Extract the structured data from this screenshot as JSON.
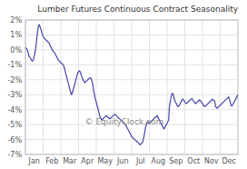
{
  "chart_data": {
    "type": "line",
    "title": "Lumber Futures Continuous Contract Seasonality",
    "annotations": [
      "© EquityClock.com"
    ],
    "color": "#4444aa",
    "grid": true,
    "xlim": [
      0,
      12
    ],
    "xticks": [
      {
        "value": 0,
        "label": "Jan"
      },
      {
        "value": 1,
        "label": "Feb"
      },
      {
        "value": 2,
        "label": "Mar"
      },
      {
        "value": 3,
        "label": "Apr"
      },
      {
        "value": 4,
        "label": "May"
      },
      {
        "value": 5,
        "label": "Jun"
      },
      {
        "value": 6,
        "label": "Jul"
      },
      {
        "value": 7,
        "label": "Aug"
      },
      {
        "value": 8,
        "label": "Sep"
      },
      {
        "value": 9,
        "label": "Oct"
      },
      {
        "value": 10,
        "label": "Nov"
      },
      {
        "value": 11,
        "label": "Dec"
      }
    ],
    "ylim": [
      -7,
      2
    ],
    "yticks": [
      {
        "value": 2,
        "label": "2%"
      },
      {
        "value": 1,
        "label": "1%"
      },
      {
        "value": 0,
        "label": "0%"
      },
      {
        "value": -1,
        "label": "-1%"
      },
      {
        "value": -2,
        "label": "-2%"
      },
      {
        "value": -3,
        "label": "-3%"
      },
      {
        "value": -4,
        "label": "-4%"
      },
      {
        "value": -5,
        "label": "-5%"
      },
      {
        "value": -6,
        "label": "-6%"
      },
      {
        "value": -7,
        "label": "-7%"
      }
    ],
    "values": [
      0.15,
      0.1,
      0.05,
      -0.1,
      -0.3,
      -0.45,
      -0.5,
      -0.6,
      -0.7,
      -0.75,
      -0.7,
      -0.5,
      -0.3,
      0.0,
      0.4,
      0.9,
      1.3,
      1.6,
      1.7,
      1.55,
      1.4,
      1.2,
      1.05,
      0.9,
      0.8,
      0.75,
      0.7,
      0.65,
      0.6,
      0.55,
      0.5,
      0.45,
      0.3,
      0.2,
      0.1,
      0.0,
      -0.1,
      -0.15,
      -0.2,
      -0.3,
      -0.4,
      -0.5,
      -0.6,
      -0.7,
      -0.75,
      -0.8,
      -0.85,
      -0.9,
      -0.95,
      -1.0,
      -1.1,
      -1.3,
      -1.5,
      -1.7,
      -1.9,
      -2.1,
      -2.3,
      -2.5,
      -2.7,
      -2.9,
      -3.0,
      -2.85,
      -2.7,
      -2.5,
      -2.3,
      -2.1,
      -1.9,
      -1.7,
      -1.55,
      -1.45,
      -1.4,
      -1.45,
      -1.6,
      -1.75,
      -1.9,
      -2.0,
      -2.1,
      -2.2,
      -2.15,
      -2.1,
      -2.05,
      -2.0,
      -1.95,
      -1.9,
      -1.85,
      -1.9,
      -2.0,
      -2.2,
      -2.5,
      -2.8,
      -3.1,
      -3.3,
      -3.5,
      -3.7,
      -3.9,
      -4.1,
      -4.3,
      -4.5,
      -4.6,
      -4.7,
      -4.65,
      -4.6,
      -4.55,
      -4.5,
      -4.45,
      -4.4,
      -4.45,
      -4.5,
      -4.55,
      -4.6,
      -4.6,
      -4.55,
      -4.5,
      -4.45,
      -4.4,
      -4.35,
      -4.3,
      -4.35,
      -4.4,
      -4.45,
      -4.5,
      -4.55,
      -4.6,
      -4.65,
      -4.7,
      -4.75,
      -4.8,
      -4.85,
      -4.9,
      -4.95,
      -5.0,
      -5.1,
      -5.2,
      -5.3,
      -5.4,
      -5.5,
      -5.6,
      -5.7,
      -5.8,
      -5.85,
      -5.9,
      -5.95,
      -6.0,
      -6.05,
      -6.1,
      -6.15,
      -6.2,
      -6.25,
      -6.3,
      -6.35,
      -6.3,
      -6.25,
      -6.2,
      -6.0,
      -5.8,
      -5.5,
      -5.2,
      -5.0,
      -4.85,
      -4.8,
      -4.85,
      -4.9,
      -4.85,
      -4.8,
      -4.75,
      -4.7,
      -4.65,
      -4.6,
      -4.55,
      -4.5,
      -4.45,
      -4.4,
      -4.5,
      -4.6,
      -4.7,
      -4.8,
      -4.9,
      -5.0,
      -5.1,
      -5.2,
      -5.3,
      -5.2,
      -5.1,
      -5.0,
      -4.9,
      -4.8,
      -4.7,
      -3.8,
      -3.5,
      -3.2,
      -3.0,
      -2.9,
      -3.0,
      -3.2,
      -3.4,
      -3.5,
      -3.6,
      -3.7,
      -3.8,
      -3.75,
      -3.7,
      -3.6,
      -3.5,
      -3.4,
      -3.3,
      -3.3,
      -3.4,
      -3.5,
      -3.55,
      -3.6,
      -3.55,
      -3.5,
      -3.45,
      -3.4,
      -3.35,
      -3.3,
      -3.25,
      -3.3,
      -3.4,
      -3.5,
      -3.55,
      -3.6,
      -3.55,
      -3.5,
      -3.45,
      -3.4,
      -3.35,
      -3.4,
      -3.45,
      -3.5,
      -3.6,
      -3.7,
      -3.75,
      -3.8,
      -3.75,
      -3.7,
      -3.65,
      -3.6,
      -3.55,
      -3.5,
      -3.45,
      -3.4,
      -3.35,
      -3.3,
      -3.35,
      -3.4,
      -3.45,
      -3.8,
      -3.85,
      -3.9,
      -3.85,
      -3.8,
      -3.75,
      -3.7,
      -3.65,
      -3.6,
      -3.55,
      -3.5,
      -3.45,
      -3.4,
      -3.35,
      -3.3,
      -3.25,
      -3.2,
      -3.15,
      -3.3,
      -3.5,
      -3.7,
      -3.75,
      -3.7,
      -3.6,
      -3.5,
      -3.4,
      -3.3,
      -3.2,
      -3.1,
      -3.0
    ]
  }
}
